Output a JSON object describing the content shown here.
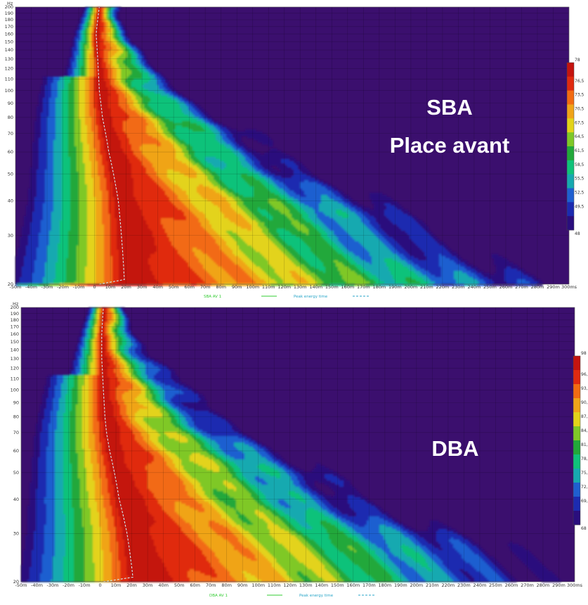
{
  "chart_data": [
    {
      "type": "heatmap",
      "subtype": "spectrogram",
      "yunit": "Hz",
      "yscale": "log",
      "ylim": [
        20,
        200
      ],
      "xlim": [
        -0.05,
        0.3
      ],
      "x_ticks": [
        "-50m",
        "-40m",
        "-30m",
        "-20m",
        "-10m",
        "0",
        "10m",
        "20m",
        "30m",
        "40m",
        "50m",
        "60m",
        "70m",
        "80m",
        "90m",
        "100m",
        "110m",
        "120m",
        "130m",
        "140m",
        "150m",
        "160m",
        "170m",
        "180m",
        "190m",
        "200m",
        "210m",
        "220m",
        "230m",
        "240m",
        "250m",
        "260m",
        "270m",
        "280m",
        "290m",
        "300ms"
      ],
      "y_ticks": [
        "20",
        "30",
        "40",
        "50",
        "60",
        "70",
        "80",
        "90",
        "100",
        "110",
        "120",
        "130",
        "140",
        "150",
        "160",
        "170",
        "180",
        "190",
        "200"
      ],
      "colorbar_ticks": [
        "78",
        "76,5",
        "73,5",
        "70,5",
        "67,5",
        "64,5",
        "61,5",
        "58,5",
        "55,5",
        "52,5",
        "49,5",
        "48"
      ],
      "colorbar_range": [
        48,
        78
      ],
      "legend": [
        "SBA AV 1",
        "Peak energy time"
      ],
      "annotations": [
        "SBA",
        "Place avant"
      ],
      "peak_energy_time_ms": [
        [
          20,
          19
        ],
        [
          30,
          17
        ],
        [
          40,
          15
        ],
        [
          50,
          12
        ],
        [
          60,
          9
        ],
        [
          70,
          7
        ],
        [
          80,
          5
        ],
        [
          100,
          3
        ],
        [
          130,
          2
        ],
        [
          160,
          1
        ],
        [
          200,
          3
        ]
      ],
      "background_color": "#3b0f6e"
    },
    {
      "type": "heatmap",
      "subtype": "spectrogram",
      "yunit": "Hz",
      "yscale": "log",
      "ylim": [
        20,
        200
      ],
      "xlim": [
        -0.05,
        0.3
      ],
      "x_ticks": [
        "-50m",
        "-40m",
        "-30m",
        "-20m",
        "-10m",
        "0",
        "10m",
        "20m",
        "30m",
        "40m",
        "50m",
        "60m",
        "70m",
        "80m",
        "90m",
        "100m",
        "110m",
        "120m",
        "130m",
        "140m",
        "150m",
        "160m",
        "170m",
        "180m",
        "190m",
        "200m",
        "210m",
        "220m",
        "230m",
        "240m",
        "250m",
        "260m",
        "270m",
        "280m",
        "290m",
        "300ms"
      ],
      "y_ticks": [
        "20",
        "30",
        "40",
        "50",
        "60",
        "70",
        "80",
        "90",
        "100",
        "110",
        "120",
        "130",
        "140",
        "150",
        "160",
        "170",
        "180",
        "190",
        "200"
      ],
      "colorbar_ticks": [
        "98",
        "96,",
        "93,",
        "90,",
        "87,",
        "84,",
        "81,",
        "78,",
        "75,",
        "72,",
        "69,",
        "68"
      ],
      "colorbar_range": [
        68,
        98
      ],
      "legend": [
        "DBA AV 1",
        "Peak energy time"
      ],
      "annotations": [
        "DBA"
      ],
      "peak_energy_time_ms": [
        [
          20,
          21
        ],
        [
          30,
          17
        ],
        [
          40,
          12
        ],
        [
          50,
          9
        ],
        [
          60,
          6
        ],
        [
          70,
          4
        ],
        [
          80,
          3
        ],
        [
          100,
          2
        ],
        [
          130,
          1
        ],
        [
          160,
          1
        ],
        [
          200,
          2
        ]
      ],
      "background_color": "#3b0f6e"
    }
  ],
  "palette": [
    "#2a0e7d",
    "#1c2bb0",
    "#1f5fd0",
    "#17a9b0",
    "#10c27a",
    "#22a83a",
    "#7fc828",
    "#e3d31a",
    "#f0a419",
    "#f26b12",
    "#e02a10",
    "#c4140f"
  ],
  "legend_colors": {
    "series": "#33cc33",
    "peak": "#2aa6c8"
  }
}
